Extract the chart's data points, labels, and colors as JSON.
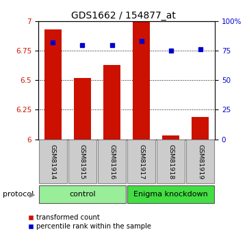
{
  "title": "GDS1662 / 154877_at",
  "samples": [
    "GSM81914",
    "GSM81915",
    "GSM81916",
    "GSM81917",
    "GSM81918",
    "GSM81919"
  ],
  "bar_values": [
    6.93,
    6.52,
    6.63,
    7.0,
    6.03,
    6.19
  ],
  "dot_values": [
    6.82,
    6.8,
    6.8,
    6.83,
    6.75,
    6.76
  ],
  "bar_color": "#cc1100",
  "dot_color": "#0000cc",
  "ylim_left": [
    6.0,
    7.0
  ],
  "yticks_left": [
    6.0,
    6.25,
    6.5,
    6.75,
    7.0
  ],
  "ytick_labels_left": [
    "6",
    "6.25",
    "6.5",
    "6.75",
    "7"
  ],
  "yticks_right": [
    0,
    25,
    50,
    75,
    100
  ],
  "ytick_labels_right": [
    "0",
    "25",
    "50",
    "75",
    "100%"
  ],
  "bar_width": 0.6,
  "ctrl_color": "#99ee99",
  "knock_color": "#44dd44",
  "sample_box_color": "#cccccc",
  "protocol_label": "protocol",
  "legend_entries": [
    "transformed count",
    "percentile rank within the sample"
  ],
  "title_fontsize": 10,
  "tick_fontsize": 7.5,
  "label_fontsize": 7.5,
  "bar_bottom": 6.0,
  "grid_ticks": [
    6.25,
    6.5,
    6.75
  ]
}
